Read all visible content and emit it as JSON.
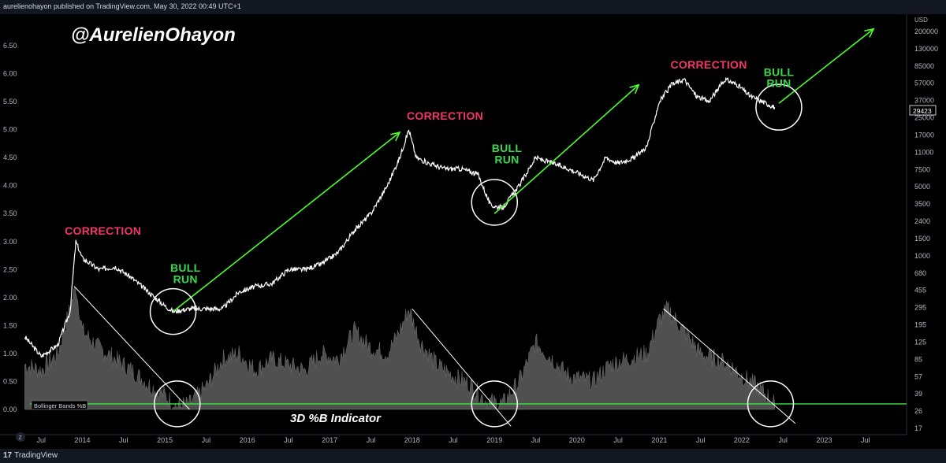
{
  "header": {
    "published_text": "aurelienohayon published on TradingView.com, May 30, 2022 00:49 UTC+1"
  },
  "footer": {
    "brand_glyph": "17",
    "brand_label": "TradingView"
  },
  "watermark": {
    "handle": "@AurelienOhayon",
    "indicator_label": "3D %B Indicator"
  },
  "bb_label": "Bollinger Bands %B",
  "price_label": "29423",
  "colors": {
    "background": "#000000",
    "price_line": "#ffffff",
    "histogram": "#505050",
    "arrow": "#4cff2b",
    "baseline": "#38e83a",
    "correction": "#f23668",
    "bull_run": "#39d84a"
  },
  "chart_data": {
    "type": "line",
    "left_axis": {
      "ticks": [
        "6.50",
        "6.00",
        "5.50",
        "5.00",
        "4.50",
        "4.00",
        "3.50",
        "3.00",
        "2.50",
        "2.00",
        "1.50",
        "1.00",
        "0.50",
        "0.00"
      ]
    },
    "right_axis": {
      "currency": "USD",
      "scale": "log",
      "ticks": [
        "200000",
        "130000",
        "85000",
        "57000",
        "37000",
        "25000",
        "17000",
        "11000",
        "7500",
        "5000",
        "3500",
        "2400",
        "1500",
        "1000",
        "680",
        "455",
        "295",
        "195",
        "125",
        "85",
        "57",
        "39",
        "26",
        "17"
      ]
    },
    "x_axis": {
      "ticks": [
        "Jul",
        "2014",
        "Jul",
        "2015",
        "Jul",
        "2016",
        "Jul",
        "2017",
        "Jul",
        "2018",
        "Jul",
        "2019",
        "Jul",
        "2020",
        "Jul",
        "2021",
        "Jul",
        "2022",
        "Jul",
        "2023",
        "Jul"
      ]
    },
    "series": [
      {
        "values": [
          [
            2013.3,
            1.3
          ],
          [
            2013.5,
            0.95
          ],
          [
            2013.7,
            1.15
          ],
          [
            2013.85,
            1.75
          ],
          [
            2013.92,
            3.0
          ],
          [
            2014.0,
            2.7
          ],
          [
            2014.2,
            2.5
          ],
          [
            2014.4,
            2.55
          ],
          [
            2014.6,
            2.35
          ],
          [
            2014.8,
            2.1
          ],
          [
            2015.0,
            1.85
          ],
          [
            2015.1,
            1.75
          ],
          [
            2015.3,
            1.8
          ],
          [
            2015.5,
            1.8
          ],
          [
            2015.7,
            1.8
          ],
          [
            2015.9,
            2.1
          ],
          [
            2016.1,
            2.2
          ],
          [
            2016.3,
            2.25
          ],
          [
            2016.5,
            2.5
          ],
          [
            2016.7,
            2.5
          ],
          [
            2016.9,
            2.6
          ],
          [
            2017.1,
            2.8
          ],
          [
            2017.3,
            3.2
          ],
          [
            2017.5,
            3.5
          ],
          [
            2017.7,
            4.0
          ],
          [
            2017.85,
            4.5
          ],
          [
            2017.96,
            5.0
          ],
          [
            2018.05,
            4.5
          ],
          [
            2018.2,
            4.4
          ],
          [
            2018.4,
            4.3
          ],
          [
            2018.6,
            4.3
          ],
          [
            2018.8,
            4.2
          ],
          [
            2018.95,
            3.65
          ],
          [
            2019.1,
            3.6
          ],
          [
            2019.3,
            4.0
          ],
          [
            2019.5,
            4.5
          ],
          [
            2019.7,
            4.4
          ],
          [
            2019.9,
            4.3
          ],
          [
            2020.2,
            4.1
          ],
          [
            2020.35,
            4.5
          ],
          [
            2020.5,
            4.4
          ],
          [
            2020.7,
            4.5
          ],
          [
            2020.85,
            4.7
          ],
          [
            2021.0,
            5.5
          ],
          [
            2021.15,
            5.8
          ],
          [
            2021.3,
            5.9
          ],
          [
            2021.45,
            5.6
          ],
          [
            2021.6,
            5.5
          ],
          [
            2021.8,
            5.9
          ],
          [
            2021.95,
            5.8
          ],
          [
            2022.1,
            5.6
          ],
          [
            2022.25,
            5.5
          ],
          [
            2022.4,
            5.4
          ]
        ]
      },
      {
        "name": "Bollinger Bands %B",
        "values": [
          [
            2013.3,
            0.8
          ],
          [
            2013.5,
            0.7
          ],
          [
            2013.7,
            1.0
          ],
          [
            2013.85,
            1.8
          ],
          [
            2013.92,
            2.2
          ],
          [
            2014.0,
            1.4
          ],
          [
            2014.2,
            1.1
          ],
          [
            2014.4,
            0.9
          ],
          [
            2014.6,
            0.7
          ],
          [
            2014.8,
            0.45
          ],
          [
            2015.0,
            0.25
          ],
          [
            2015.15,
            0.05
          ],
          [
            2015.3,
            0.1
          ],
          [
            2015.5,
            0.4
          ],
          [
            2015.7,
            0.9
          ],
          [
            2015.9,
            1.0
          ],
          [
            2016.1,
            0.7
          ],
          [
            2016.3,
            0.9
          ],
          [
            2016.5,
            0.8
          ],
          [
            2016.7,
            0.7
          ],
          [
            2016.9,
            1.0
          ],
          [
            2017.1,
            0.9
          ],
          [
            2017.3,
            1.4
          ],
          [
            2017.5,
            1.1
          ],
          [
            2017.7,
            1.0
          ],
          [
            2017.85,
            1.4
          ],
          [
            2017.96,
            1.8
          ],
          [
            2018.1,
            1.2
          ],
          [
            2018.3,
            0.8
          ],
          [
            2018.5,
            0.6
          ],
          [
            2018.7,
            0.45
          ],
          [
            2018.9,
            0.15
          ],
          [
            2019.1,
            0.1
          ],
          [
            2019.3,
            0.5
          ],
          [
            2019.5,
            1.2
          ],
          [
            2019.7,
            0.9
          ],
          [
            2019.9,
            0.6
          ],
          [
            2020.2,
            0.5
          ],
          [
            2020.4,
            0.8
          ],
          [
            2020.6,
            0.9
          ],
          [
            2020.85,
            1.0
          ],
          [
            2021.0,
            1.6
          ],
          [
            2021.1,
            1.8
          ],
          [
            2021.3,
            1.4
          ],
          [
            2021.5,
            1.0
          ],
          [
            2021.7,
            0.9
          ],
          [
            2021.85,
            0.8
          ],
          [
            2022.0,
            0.6
          ],
          [
            2022.2,
            0.4
          ],
          [
            2022.4,
            0.1
          ]
        ]
      }
    ],
    "annotations": [
      {
        "text": "CORRECTION",
        "color": "red",
        "x": 2014.25,
        "y": 3.12
      },
      {
        "text": "BULL",
        "color": "green",
        "x": 2015.25,
        "y": 2.46
      },
      {
        "text": "RUN",
        "color": "green",
        "x": 2015.25,
        "y": 2.26
      },
      {
        "text": "CORRECTION",
        "color": "red",
        "x": 2018.4,
        "y": 5.18
      },
      {
        "text": "BULL",
        "color": "green",
        "x": 2019.15,
        "y": 4.6
      },
      {
        "text": "RUN",
        "color": "green",
        "x": 2019.15,
        "y": 4.4
      },
      {
        "text": "CORRECTION",
        "color": "red",
        "x": 2021.6,
        "y": 6.09
      },
      {
        "text": "BULL",
        "color": "green",
        "x": 2022.45,
        "y": 5.96
      },
      {
        "text": "RUN",
        "color": "green",
        "x": 2022.45,
        "y": 5.76
      }
    ],
    "arrows": [
      {
        "from": [
          2015.1,
          1.75
        ],
        "to": [
          2017.85,
          4.95
        ]
      },
      {
        "from": [
          2019.0,
          3.5
        ],
        "to": [
          2020.75,
          5.8
        ]
      },
      {
        "from": [
          2022.45,
          5.47
        ],
        "to": [
          2023.6,
          6.8
        ]
      }
    ],
    "trend_lines": [
      {
        "from": [
          2013.9,
          2.2
        ],
        "to": [
          2015.3,
          0.0
        ]
      },
      {
        "from": [
          2018.0,
          1.8
        ],
        "to": [
          2019.2,
          -0.3
        ]
      },
      {
        "from": [
          2021.05,
          1.8
        ],
        "to": [
          2022.65,
          -0.25
        ]
      }
    ],
    "circles": [
      [
        2015.1,
        1.75
      ],
      [
        2019.0,
        3.7
      ],
      [
        2022.45,
        5.4
      ],
      [
        2015.15,
        0.1
      ],
      [
        2019.0,
        0.1
      ],
      [
        2022.35,
        0.1
      ]
    ],
    "baseline_y": 0.1
  }
}
